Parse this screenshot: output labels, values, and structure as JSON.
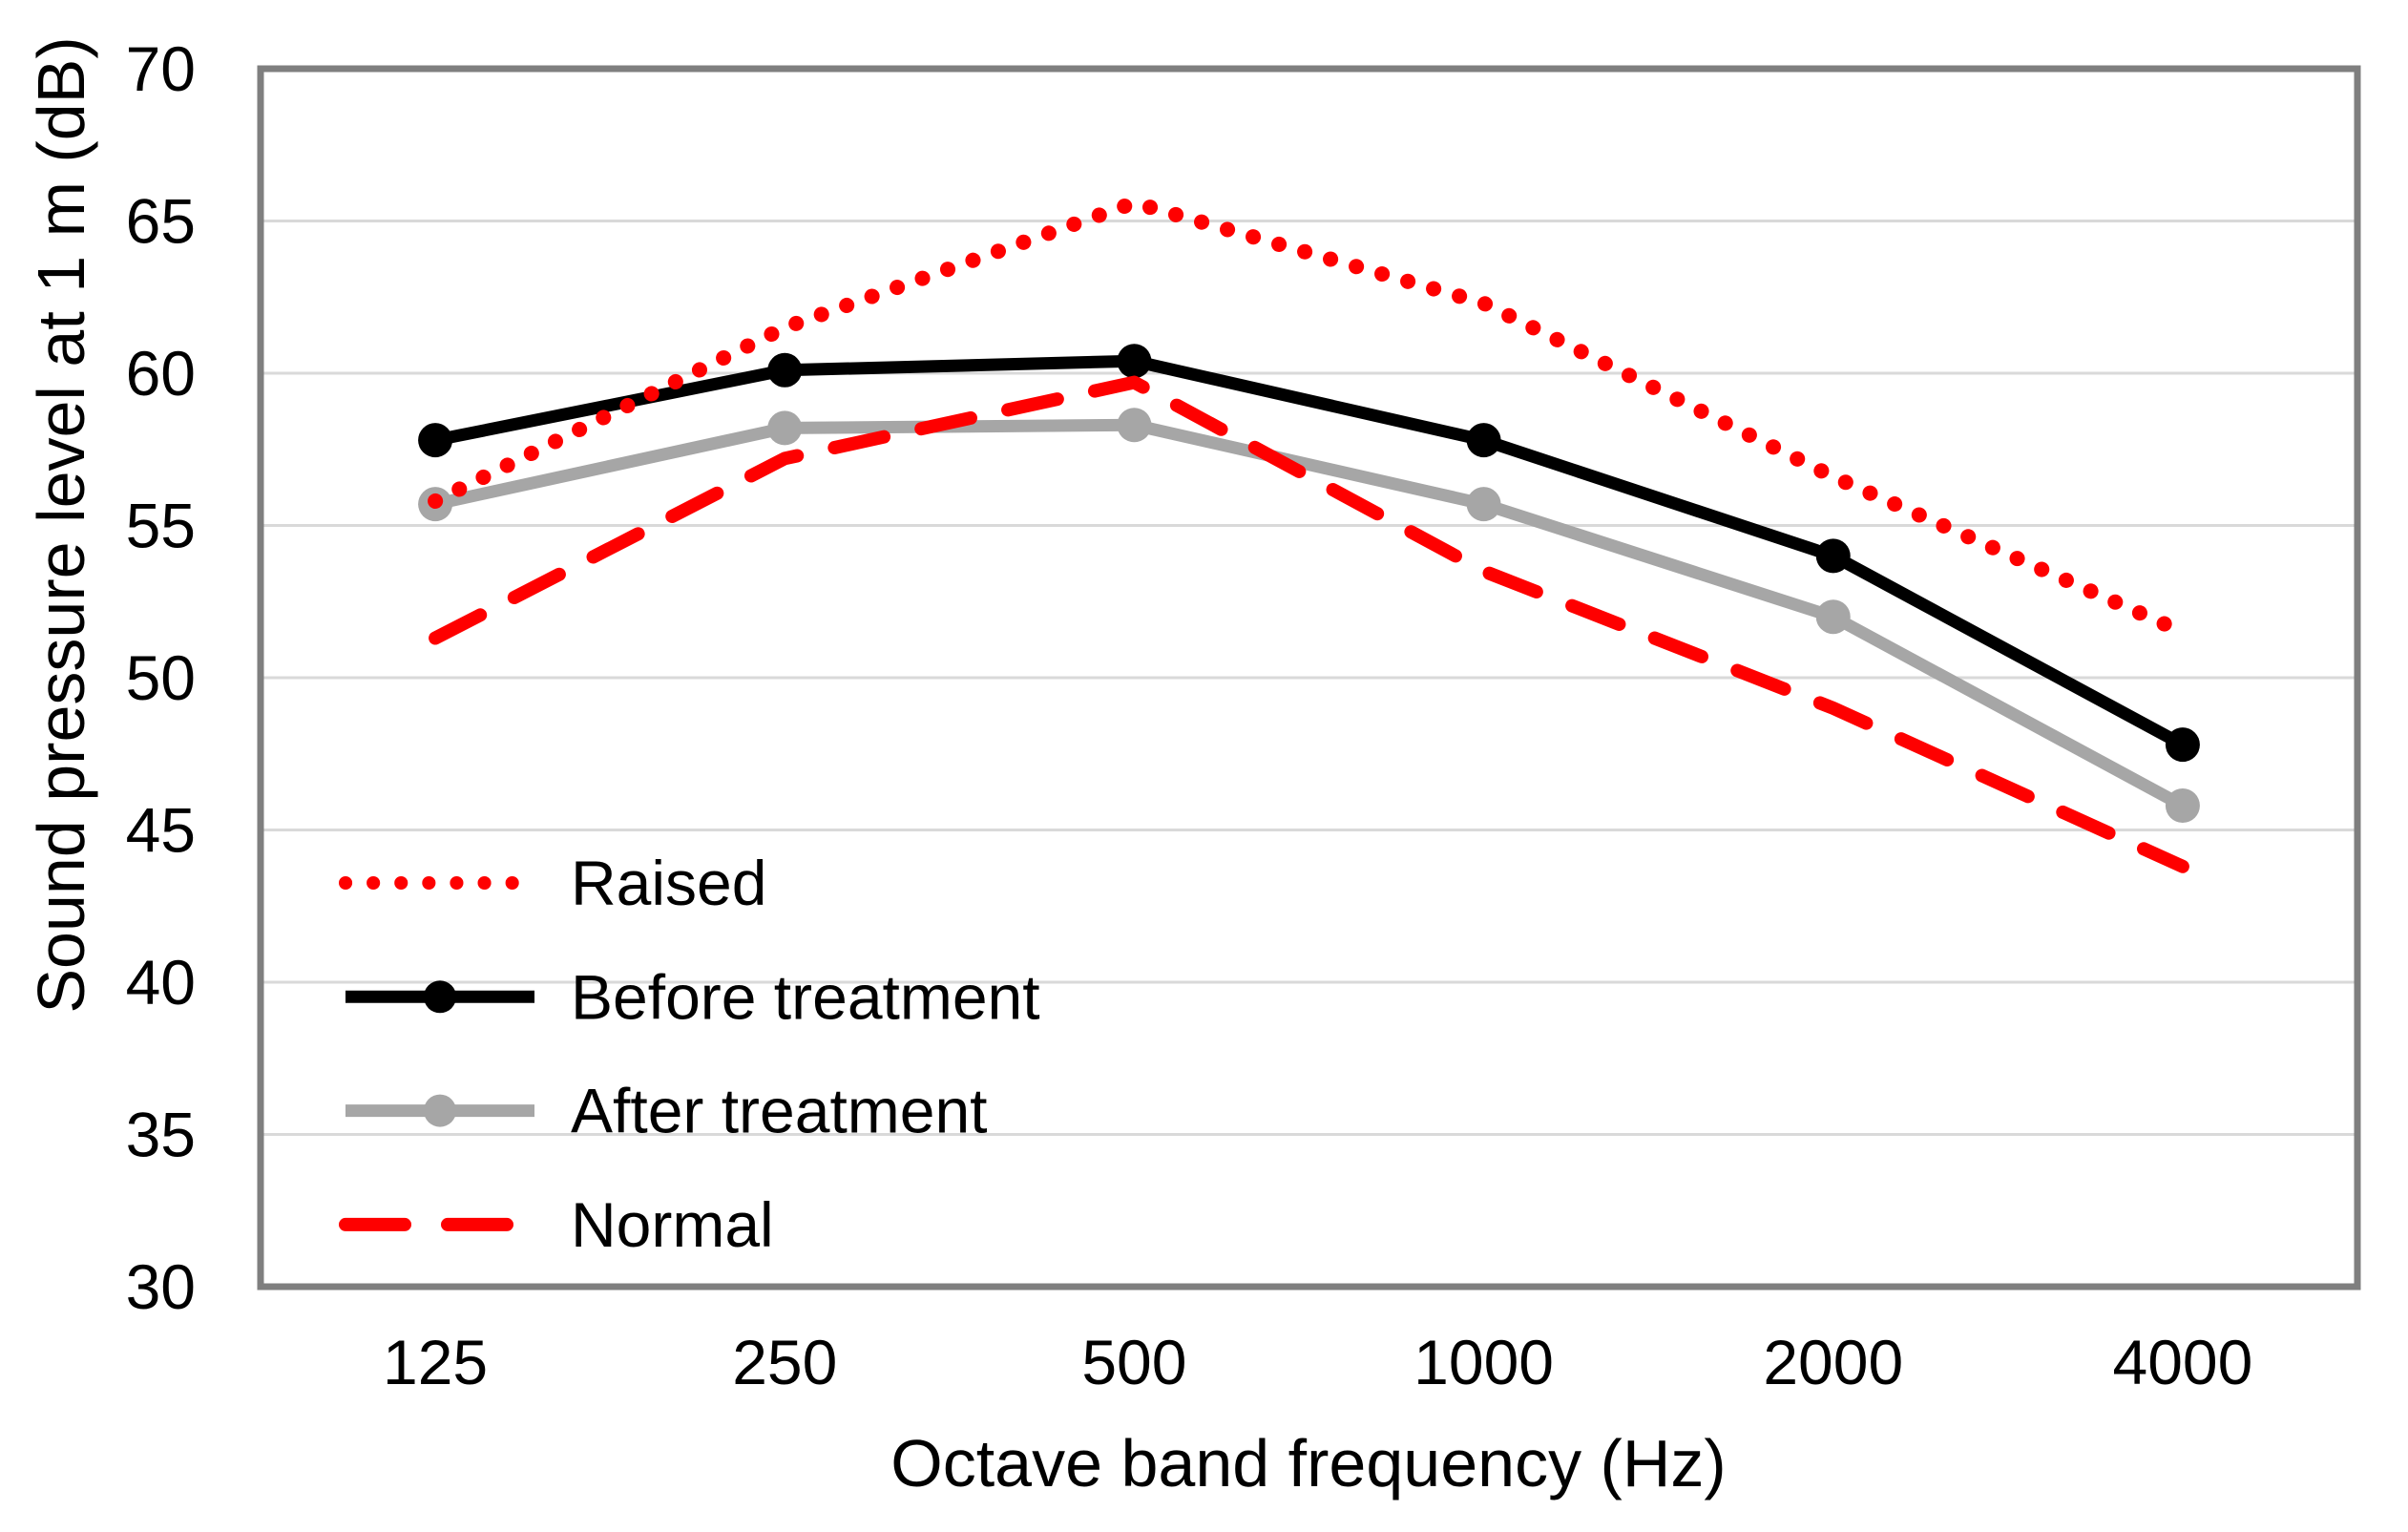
{
  "figure": {
    "description": "Line chart of sound pressure level versus octave band frequency for four voice conditions"
  },
  "colors": {
    "red": "#fe0000",
    "black": "#000000",
    "gray_series": "#a6a6a6",
    "gridline": "#d9d9d9",
    "axis_border": "#7f7f7f",
    "text": "#000000",
    "background": "#ffffff"
  },
  "chart_data": {
    "type": "line",
    "title": "",
    "xlabel": "Octave band frequency (Hz)",
    "ylabel": "Sound pressure level at 1 m (dB)",
    "categories": [
      "125",
      "250",
      "500",
      "1000",
      "2000",
      "4000"
    ],
    "ylim": [
      30,
      70
    ],
    "ytick_step": 5,
    "ytick_labels": [
      "30",
      "35",
      "40",
      "45",
      "50",
      "55",
      "60",
      "65",
      "70"
    ],
    "grid": "horizontal",
    "legend_position": "inside-bottom-left",
    "legend_entries": [
      "Raised",
      "Before treatment",
      "After treatment",
      "Normal"
    ],
    "series": [
      {
        "name": "Raised",
        "color": "#fe0000",
        "line_style": "dotted",
        "marker": "none",
        "values": [
          55.8,
          61.5,
          65.6,
          62.3,
          56.6,
          51.5
        ]
      },
      {
        "name": "Before treatment",
        "color": "#000000",
        "line_style": "solid",
        "marker": "circle",
        "values": [
          57.8,
          60.1,
          60.4,
          57.8,
          54.0,
          47.8
        ]
      },
      {
        "name": "After treatment",
        "color": "#a6a6a6",
        "line_style": "solid",
        "marker": "circle",
        "values": [
          55.7,
          58.2,
          58.3,
          55.7,
          52.0,
          45.8
        ]
      },
      {
        "name": "Normal",
        "color": "#fe0000",
        "line_style": "dashed",
        "marker": "none",
        "values": [
          51.3,
          57.2,
          59.7,
          53.5,
          49.0,
          43.8
        ]
      }
    ]
  }
}
